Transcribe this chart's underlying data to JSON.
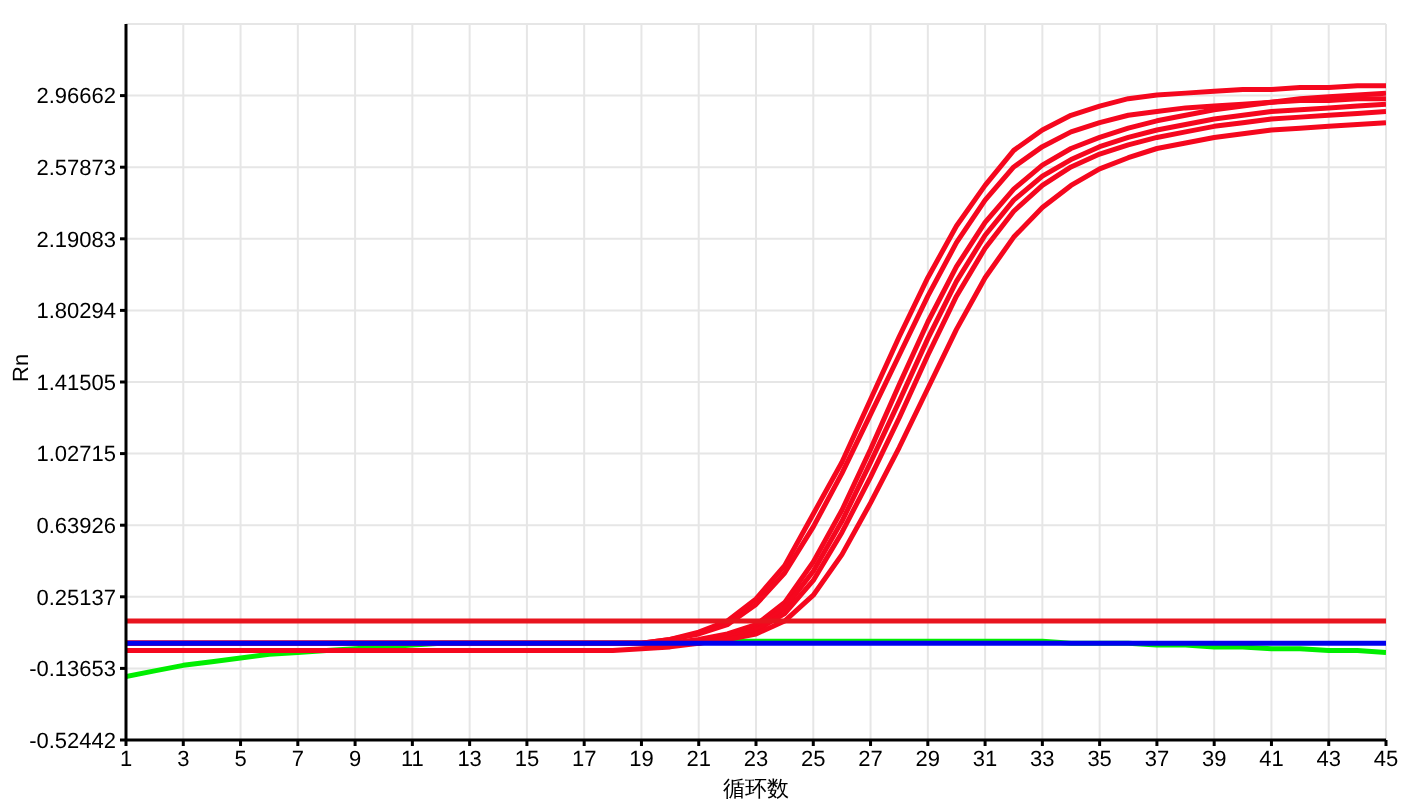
{
  "chart_data": {
    "type": "line",
    "xlabel": "循环数",
    "ylabel": "Rn",
    "x": [
      1,
      2,
      3,
      4,
      5,
      6,
      7,
      8,
      9,
      10,
      11,
      12,
      13,
      14,
      15,
      16,
      17,
      18,
      19,
      20,
      21,
      22,
      23,
      24,
      25,
      26,
      27,
      28,
      29,
      30,
      31,
      32,
      33,
      34,
      35,
      36,
      37,
      38,
      39,
      40,
      41,
      42,
      43,
      44,
      45
    ],
    "xlim": [
      1,
      45
    ],
    "xticks": [
      1,
      3,
      5,
      7,
      9,
      11,
      13,
      15,
      17,
      19,
      21,
      23,
      25,
      27,
      29,
      31,
      33,
      35,
      37,
      39,
      41,
      43,
      45
    ],
    "ylim": [
      -0.52442,
      3.35448
    ],
    "yticks": [
      -0.52442,
      -0.13653,
      0.25137,
      0.63926,
      1.02715,
      1.41505,
      1.80294,
      2.19083,
      2.57873,
      2.96662
    ],
    "grid": true,
    "legend": false,
    "marker": "none",
    "line_style": "solid",
    "ref_lines": [
      {
        "axis": "y",
        "value": 0.12,
        "color": "#e8141e"
      }
    ],
    "series": [
      {
        "color": "#00ee00",
        "values": [
          -0.18,
          -0.15,
          -0.12,
          -0.1,
          -0.08,
          -0.06,
          -0.05,
          -0.04,
          -0.03,
          -0.02,
          -0.01,
          0,
          0,
          0,
          0,
          0,
          0,
          0,
          0,
          0,
          0.01,
          0.01,
          0.01,
          0.01,
          0.01,
          0.01,
          0.01,
          0.01,
          0.01,
          0.01,
          0.01,
          0.01,
          0.01,
          0,
          0,
          0,
          -0.01,
          -0.01,
          -0.02,
          -0.02,
          -0.03,
          -0.03,
          -0.04,
          -0.04,
          -0.05
        ]
      },
      {
        "color": "#f5071e",
        "values": [
          0,
          0,
          0,
          0,
          0,
          0,
          0,
          0,
          0,
          0,
          0,
          0,
          0,
          0,
          0,
          0,
          0,
          0,
          0,
          0.02,
          0.06,
          0.12,
          0.24,
          0.42,
          0.7,
          0.98,
          1.32,
          1.66,
          1.98,
          2.26,
          2.48,
          2.67,
          2.78,
          2.86,
          2.91,
          2.95,
          2.97,
          2.98,
          2.99,
          3,
          3,
          3.01,
          3.01,
          3.02,
          3.02
        ]
      },
      {
        "color": "#f5071e",
        "values": [
          0,
          0,
          0,
          0,
          0,
          0,
          0,
          0,
          0,
          0,
          0,
          0,
          0,
          0,
          0,
          0,
          0,
          0,
          0,
          0.02,
          0.05,
          0.1,
          0.21,
          0.38,
          0.63,
          0.92,
          1.24,
          1.56,
          1.88,
          2.17,
          2.4,
          2.58,
          2.69,
          2.77,
          2.82,
          2.86,
          2.88,
          2.9,
          2.91,
          2.92,
          2.93,
          2.94,
          2.94,
          2.95,
          2.95
        ]
      },
      {
        "color": "#f5071e",
        "values": [
          0,
          0,
          0,
          0,
          0,
          0,
          0,
          0,
          0,
          0,
          0,
          0,
          0,
          0,
          0,
          0,
          0,
          0,
          0,
          0,
          0.02,
          0.05,
          0.1,
          0.22,
          0.44,
          0.72,
          1.05,
          1.4,
          1.74,
          2.04,
          2.28,
          2.46,
          2.59,
          2.68,
          2.74,
          2.79,
          2.83,
          2.86,
          2.89,
          2.91,
          2.93,
          2.95,
          2.96,
          2.97,
          2.98
        ]
      },
      {
        "color": "#f5071e",
        "values": [
          0,
          0,
          0,
          0,
          0,
          0,
          0,
          0,
          0,
          0,
          0,
          0,
          0,
          0,
          0,
          0,
          0,
          0,
          0,
          0,
          0,
          0.04,
          0.08,
          0.19,
          0.39,
          0.66,
          0.98,
          1.31,
          1.65,
          1.96,
          2.21,
          2.4,
          2.53,
          2.62,
          2.69,
          2.74,
          2.78,
          2.81,
          2.84,
          2.86,
          2.88,
          2.89,
          2.9,
          2.91,
          2.92
        ]
      },
      {
        "color": "#f5071e",
        "values": [
          0,
          0,
          0,
          0,
          0,
          0,
          0,
          0,
          0,
          0,
          0,
          0,
          0,
          0,
          0,
          0,
          0,
          0,
          0,
          0,
          0,
          0.03,
          0.07,
          0.16,
          0.34,
          0.6,
          0.9,
          1.22,
          1.56,
          1.88,
          2.14,
          2.34,
          2.48,
          2.58,
          2.65,
          2.7,
          2.74,
          2.77,
          2.8,
          2.82,
          2.84,
          2.85,
          2.86,
          2.87,
          2.88
        ]
      },
      {
        "color": "#f5071e",
        "values": [
          -0.04,
          -0.04,
          -0.04,
          -0.04,
          -0.04,
          -0.04,
          -0.04,
          -0.04,
          -0.04,
          -0.04,
          -0.04,
          -0.04,
          -0.04,
          -0.04,
          -0.04,
          -0.04,
          -0.04,
          -0.04,
          -0.03,
          -0.02,
          0,
          0.02,
          0.05,
          0.12,
          0.26,
          0.48,
          0.76,
          1.06,
          1.38,
          1.7,
          1.98,
          2.2,
          2.36,
          2.48,
          2.57,
          2.63,
          2.68,
          2.71,
          2.74,
          2.76,
          2.78,
          2.79,
          2.8,
          2.81,
          2.82
        ]
      },
      {
        "color": "#0000ee",
        "values": [
          0,
          0,
          0,
          0,
          0,
          0,
          0,
          0,
          0,
          0,
          0,
          0,
          0,
          0,
          0,
          0,
          0,
          0,
          0,
          0,
          0,
          0,
          0,
          0,
          0,
          0,
          0,
          0,
          0,
          0,
          0,
          0,
          0,
          0,
          0,
          0,
          0,
          0,
          0,
          0,
          0,
          0,
          0,
          0,
          0
        ]
      }
    ]
  }
}
